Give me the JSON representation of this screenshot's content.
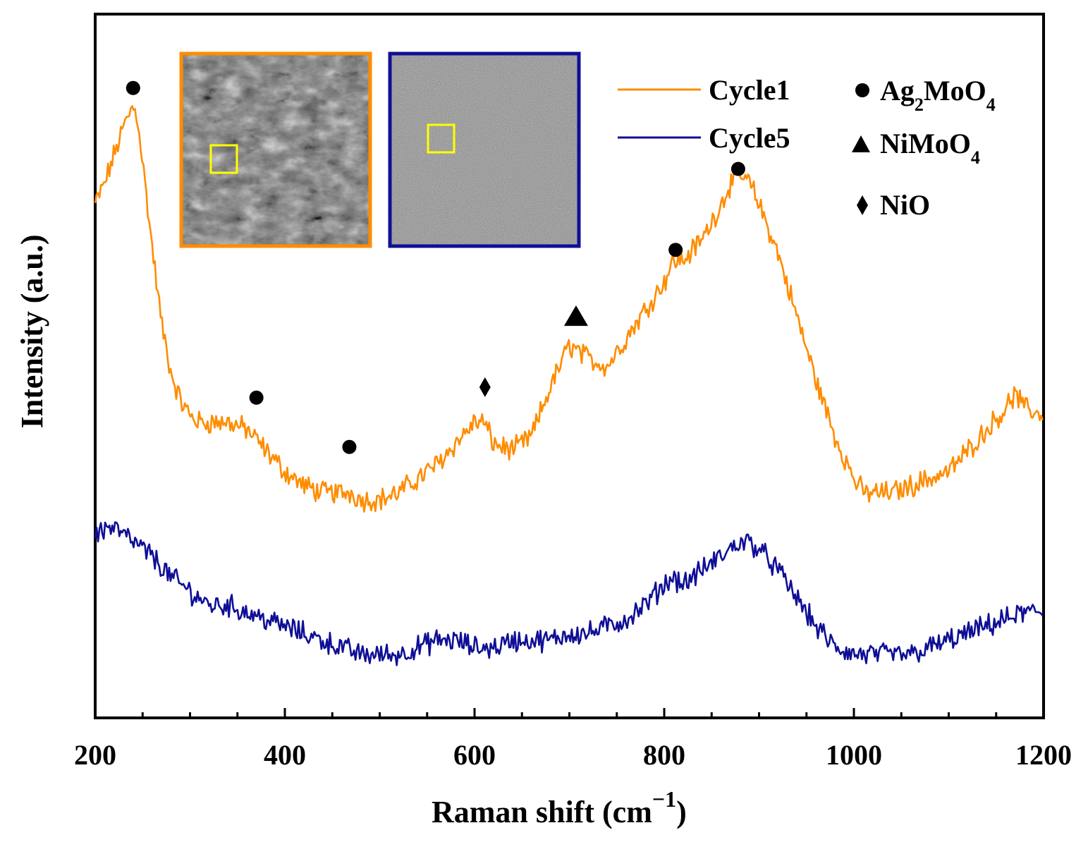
{
  "chart_data": {
    "type": "line",
    "xlabel": "Raman shift (cm",
    "xlabel_sup": "−1",
    "xlabel_end": ")",
    "ylabel": "Intensity (a.u.)",
    "xlim": [
      200,
      1200
    ],
    "ylim": [
      0,
      100
    ],
    "x_ticks": [
      200,
      400,
      600,
      800,
      1000,
      1200
    ],
    "x_tick_labels": [
      "200",
      "400",
      "600",
      "800",
      "1000",
      "1200"
    ],
    "series": [
      {
        "name": "Cycle1",
        "color": "#ff8c00",
        "x": [
          200,
          210,
          220,
          230,
          240,
          245,
          250,
          260,
          270,
          280,
          290,
          300,
          310,
          320,
          340,
          360,
          380,
          400,
          420,
          440,
          460,
          470,
          480,
          500,
          520,
          540,
          560,
          580,
          600,
          610,
          620,
          640,
          660,
          680,
          690,
          700,
          710,
          720,
          740,
          760,
          780,
          800,
          810,
          820,
          840,
          860,
          870,
          880,
          890,
          900,
          920,
          940,
          960,
          980,
          1000,
          1010,
          1020,
          1040,
          1060,
          1080,
          1100,
          1120,
          1140,
          1160,
          1170,
          1180,
          1200
        ],
        "y": [
          73,
          76,
          80,
          84,
          87,
          85,
          79,
          67,
          56,
          49,
          45,
          43,
          42,
          42,
          42,
          41,
          38,
          35,
          33,
          32,
          32,
          32,
          31,
          31,
          32,
          34,
          36,
          39,
          42,
          42,
          39,
          38,
          40,
          47,
          50,
          53,
          52,
          51,
          50,
          54,
          58,
          62,
          65,
          65,
          68,
          73,
          76,
          77,
          76,
          73,
          66,
          57,
          48,
          40,
          34,
          32,
          32,
          32,
          33,
          34,
          35,
          38,
          41,
          44,
          46,
          44,
          43
        ]
      },
      {
        "name": "Cycle5",
        "color": "#0f0f96",
        "x": [
          200,
          210,
          220,
          240,
          260,
          280,
          300,
          320,
          340,
          360,
          380,
          400,
          420,
          440,
          460,
          480,
          500,
          520,
          540,
          560,
          580,
          600,
          620,
          640,
          660,
          680,
          700,
          720,
          740,
          760,
          780,
          800,
          810,
          820,
          840,
          860,
          880,
          890,
          900,
          920,
          940,
          960,
          980,
          1000,
          1020,
          1040,
          1060,
          1080,
          1100,
          1120,
          1140,
          1160,
          1180,
          1200
        ],
        "y": [
          26,
          27,
          27,
          25,
          23,
          20,
          18,
          16,
          16,
          15,
          14,
          13,
          12,
          11,
          10,
          9,
          9,
          9,
          10,
          11,
          11,
          10,
          10,
          11,
          11,
          11,
          12,
          12,
          13,
          14,
          16,
          19,
          20,
          19,
          21,
          23,
          25,
          25,
          24,
          21,
          17,
          13,
          10,
          9,
          9,
          9,
          9,
          10,
          11,
          12,
          13,
          14,
          15,
          15
        ]
      }
    ],
    "peak_markers": [
      {
        "symbol": "circle",
        "phase": "Ag2MoO4",
        "x": 240,
        "y": 89.5
      },
      {
        "symbol": "circle",
        "phase": "Ag2MoO4",
        "x": 370,
        "y": 45.5
      },
      {
        "symbol": "circle",
        "phase": "Ag2MoO4",
        "x": 468,
        "y": 38.5
      },
      {
        "symbol": "diamond",
        "phase": "NiO",
        "x": 611,
        "y": 47.0
      },
      {
        "symbol": "triangle",
        "phase": "NiMoO4",
        "x": 707,
        "y": 57.0
      },
      {
        "symbol": "circle",
        "phase": "Ag2MoO4",
        "x": 812,
        "y": 66.5
      },
      {
        "symbol": "circle",
        "phase": "Ag2MoO4",
        "x": 878,
        "y": 78.0
      }
    ],
    "legend": {
      "position": "top-right",
      "entries": [
        {
          "label": "Cycle1",
          "color": "#ff8c00"
        },
        {
          "label": "Cycle5",
          "color": "#0f0f96"
        }
      ]
    },
    "phase_legend": [
      {
        "symbol": "circle",
        "label": "Ag",
        "sub1": "2",
        "mid": "MoO",
        "sub2": "4"
      },
      {
        "symbol": "triangle",
        "label": "NiMoO",
        "sub1": "",
        "mid": "",
        "sub2": "4"
      },
      {
        "symbol": "diamond",
        "label": "NiO",
        "sub1": "",
        "mid": "",
        "sub2": ""
      }
    ],
    "insets": [
      {
        "name": "sem-image-cycle1",
        "border_color": "#ff8c00",
        "texture": "rough"
      },
      {
        "name": "sem-image-cycle5",
        "border_color": "#0f0f96",
        "texture": "smooth"
      }
    ]
  }
}
